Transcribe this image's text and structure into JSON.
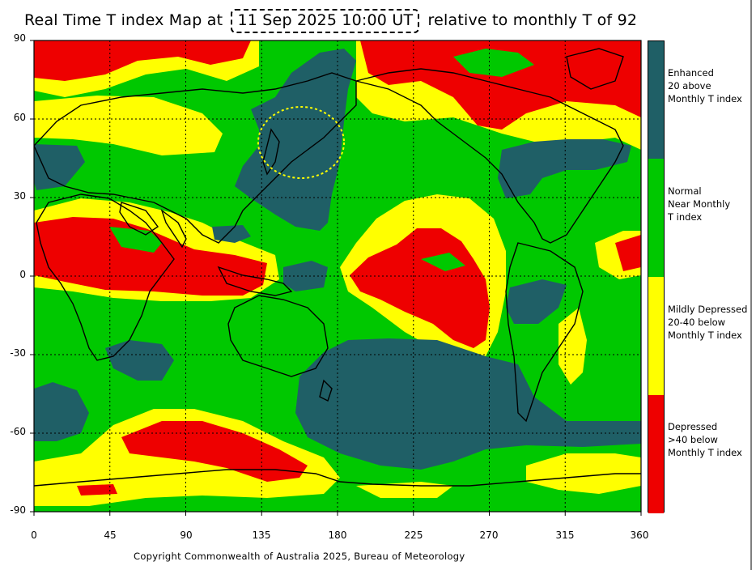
{
  "title": {
    "prefix": "Real Time T index Map at",
    "date": "11 Sep 2025 10:00 UT",
    "suffix": "relative to monthly T of 92"
  },
  "x_ticks": [
    "0",
    "45",
    "90",
    "135",
    "180",
    "225",
    "270",
    "315",
    "360"
  ],
  "y_ticks": [
    "90",
    "60",
    "30",
    "0",
    "-30",
    "-60",
    "-90"
  ],
  "legend": [
    {
      "color": "#1f5f66",
      "lines": [
        "Enhanced",
        "20 above",
        "Monthly T index"
      ]
    },
    {
      "color": "#00c800",
      "lines": [
        "Normal",
        "Near Monthly",
        "T index"
      ]
    },
    {
      "color": "#ffff00",
      "lines": [
        "Mildly Depressed",
        "20-40 below",
        "Monthly T index"
      ]
    },
    {
      "color": "#ee0000",
      "lines": [
        "Depressed",
        ">40 below",
        "Monthly T index"
      ]
    }
  ],
  "copyright": "Copyright Commonwealth of Australia 2025, Bureau of Meteorology",
  "colors": {
    "enhanced": "#1f5f66",
    "normal": "#00c800",
    "mildly_depressed": "#ffff00",
    "depressed": "#ee0000",
    "highlight_circle": "#ffff00"
  }
}
